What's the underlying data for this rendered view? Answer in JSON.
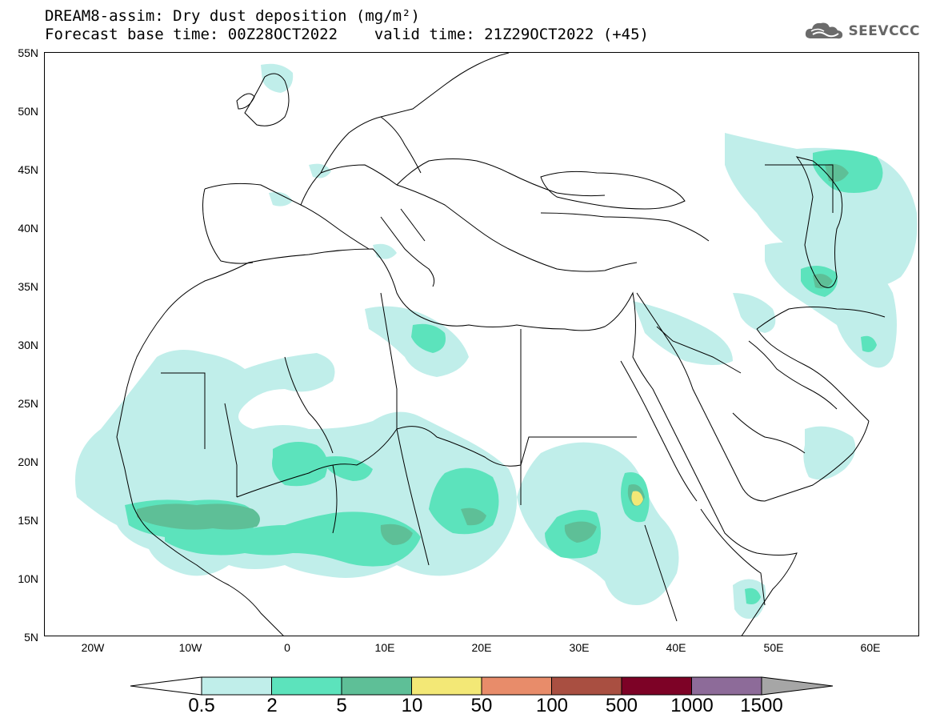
{
  "title": {
    "line1": "DREAM8-assim: Dry dust deposition (mg/m²)",
    "line2": "Forecast base time: 00Z28OCT2022    valid time: 21Z29OCT2022 (+45)"
  },
  "logo": {
    "text": "SEEVCCC",
    "icon": "cloud-logo-icon"
  },
  "map": {
    "region": "North Africa, Europe and Middle East",
    "lon_range": [
      -25,
      65
    ],
    "lat_range": [
      5,
      55
    ],
    "lat_ticks": [
      "55N",
      "50N",
      "45N",
      "40N",
      "35N",
      "30N",
      "25N",
      "20N",
      "15N",
      "10N",
      "5N"
    ],
    "lon_ticks": [
      "20W",
      "10W",
      "0",
      "10E",
      "20E",
      "30E",
      "40E",
      "50E",
      "60E"
    ],
    "grid": false
  },
  "colorbar": {
    "labels": [
      "0.5",
      "2",
      "5",
      "10",
      "50",
      "100",
      "500",
      "1000",
      "1500"
    ],
    "colors": [
      "#c0eeea",
      "#5ce3bc",
      "#5ebf97",
      "#f3e876",
      "#e88c6a",
      "#a94f41",
      "#7d0226",
      "#8d6b99",
      "#a6a6a6"
    ],
    "under_color": "#ffffff",
    "over_color": "#a6a6a6"
  }
}
